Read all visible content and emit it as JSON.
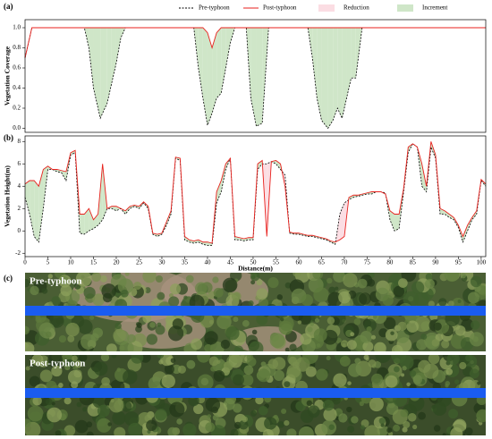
{
  "chart_data": [
    {
      "type": "line",
      "panel_label": "(a)",
      "y_label": "Vegetation Coverage",
      "x": [
        0,
        1.5,
        13,
        14,
        15,
        16.5,
        18,
        19,
        20,
        21,
        22,
        37,
        38,
        39,
        40,
        41,
        42,
        43,
        44,
        45,
        46,
        48.5,
        49.5,
        50.7,
        52,
        53.4,
        62,
        63,
        64,
        65,
        66.4,
        67.5,
        68.5,
        69.5,
        70.5,
        71.5,
        72.5,
        73.9,
        101
      ],
      "series": [
        {
          "name": "Pre-typhoon",
          "color": "#000000",
          "style": "dashed",
          "values": [
            0.7,
            1,
            1,
            0.8,
            0.4,
            0.1,
            0.25,
            0.45,
            0.65,
            0.9,
            1,
            1,
            0.6,
            0.3,
            0.03,
            0.15,
            0.3,
            0.35,
            0.6,
            0.85,
            1,
            1,
            0.3,
            0.02,
            0.05,
            1,
            1,
            0.7,
            0.3,
            0.08,
            0.0,
            0.08,
            0.2,
            0.1,
            0.3,
            0.5,
            0.5,
            1,
            1
          ]
        },
        {
          "name": "Post-typhoon",
          "color": "#e8211d",
          "style": "solid",
          "values": [
            0.7,
            1,
            1,
            1,
            1,
            1,
            1,
            1,
            1,
            1,
            1,
            1,
            1,
            1,
            0.95,
            0.8,
            0.95,
            1,
            1,
            1,
            1,
            1,
            1,
            1,
            1,
            1,
            1,
            1,
            1,
            1,
            1,
            1,
            1,
            1,
            1,
            1,
            1,
            1,
            1
          ]
        }
      ],
      "fills": [
        {
          "name": "Reduction",
          "color": "#fbdde3"
        },
        {
          "name": "Increment",
          "color": "#cfe6c8"
        }
      ],
      "xlim": [
        0,
        101
      ],
      "ylim": [
        -0.04,
        1.08
      ],
      "yticks": [
        {
          "value": 0,
          "label": "0.0"
        },
        {
          "value": 0.2,
          "label": "0.2"
        },
        {
          "value": 0.4,
          "label": "0.4"
        },
        {
          "value": 0.6,
          "label": "0.6"
        },
        {
          "value": 0.8,
          "label": "0.8"
        },
        {
          "value": 1,
          "label": "1.0"
        }
      ],
      "legend": "top-right"
    },
    {
      "type": "line",
      "panel_label": "(b)",
      "y_label": "Vegetation Height(m)",
      "x_label": "Distance(m)",
      "x": [
        0,
        1,
        2,
        3,
        4,
        5,
        6,
        7,
        8,
        9,
        10,
        11,
        12,
        13,
        14,
        15,
        16,
        17,
        18,
        19,
        20,
        21,
        22,
        23,
        24,
        25,
        26,
        27,
        28,
        29,
        30,
        31,
        32,
        33,
        34,
        35,
        36,
        37,
        38,
        39,
        40,
        41,
        42,
        43,
        44,
        45,
        46,
        47,
        48,
        49,
        50,
        51,
        52,
        53,
        54,
        55,
        56,
        57,
        58,
        59,
        60,
        61,
        62,
        63,
        64,
        65,
        66,
        67,
        68,
        69,
        70,
        71,
        72,
        73,
        74,
        75,
        76,
        77,
        78,
        79,
        80,
        81,
        82,
        83,
        84,
        85,
        86,
        87,
        88,
        89,
        90,
        91,
        92,
        93,
        94,
        95,
        96,
        97,
        98,
        99,
        100,
        101
      ],
      "series": [
        {
          "color": "#000000",
          "style": "dashed",
          "values": [
            3.0,
            1.5,
            -0.5,
            -1.0,
            2.0,
            5.5,
            5.5,
            5.3,
            5.2,
            4.5,
            6.8,
            7.0,
            -0.2,
            -0.3,
            0.0,
            0.2,
            0.5,
            1.0,
            2.0,
            2.0,
            1.8,
            2.0,
            1.5,
            2.0,
            2.2,
            2.0,
            2.5,
            2.0,
            -0.3,
            -0.5,
            -0.3,
            0.5,
            1.5,
            6.5,
            6.3,
            -0.8,
            -1.0,
            -1.1,
            -1.0,
            -1.2,
            -1.3,
            -1.3,
            2.5,
            3.5,
            5.5,
            6.5,
            -0.8,
            -0.8,
            -0.9,
            -0.8,
            -0.8,
            5.5,
            6.0,
            6.0,
            6.2,
            6.0,
            5.5,
            5.0,
            -0.2,
            -0.3,
            -0.3,
            -0.4,
            -0.5,
            -0.5,
            -0.6,
            -0.7,
            -0.8,
            -1.0,
            -1.2,
            1.5,
            2.5,
            2.8,
            3.0,
            3.1,
            3.2,
            3.3,
            3.3,
            3.5,
            3.5,
            3.4,
            1.0,
            0.0,
            0.2,
            3.5,
            7.0,
            7.8,
            7.5,
            4.0,
            3.5,
            7.5,
            6.5,
            1.5,
            1.5,
            1.2,
            1.0,
            0.3,
            -1.0,
            0.0,
            1.0,
            1.5,
            4.5,
            4.0
          ]
        },
        {
          "color": "#e8211d",
          "style": "solid",
          "values": [
            4.2,
            4.5,
            4.5,
            4.0,
            5.5,
            5.8,
            5.5,
            5.5,
            5.4,
            5.3,
            7.0,
            7.2,
            1.5,
            1.5,
            2.0,
            1.0,
            1.5,
            6.0,
            2.0,
            2.2,
            2.2,
            2.0,
            1.8,
            2.2,
            2.3,
            2.2,
            2.6,
            2.2,
            -0.2,
            -0.3,
            -0.2,
            0.8,
            1.8,
            6.6,
            6.5,
            -0.5,
            -0.8,
            -0.9,
            -0.8,
            -1.0,
            -1.0,
            -1.1,
            3.5,
            4.5,
            6.0,
            6.5,
            -0.5,
            -0.6,
            -0.7,
            -0.6,
            -0.6,
            6.0,
            6.3,
            -0.5,
            6.2,
            6.3,
            6.0,
            4.0,
            -0.1,
            -0.2,
            -0.2,
            -0.3,
            -0.4,
            -0.4,
            -0.5,
            -0.6,
            -0.7,
            -0.9,
            -1.0,
            -0.8,
            -0.5,
            3.0,
            3.2,
            3.2,
            3.3,
            3.4,
            3.5,
            3.5,
            3.5,
            3.3,
            1.8,
            1.5,
            1.5,
            3.8,
            7.5,
            7.8,
            7.5,
            6.0,
            4.0,
            8.0,
            6.8,
            2.0,
            1.8,
            1.5,
            1.2,
            0.5,
            -0.5,
            0.5,
            1.2,
            1.8,
            4.6,
            4.2
          ]
        }
      ],
      "xlim": [
        0,
        101
      ],
      "ylim": [
        -2.3,
        8.5
      ],
      "xticks": [
        0,
        5,
        10,
        15,
        20,
        25,
        30,
        35,
        40,
        45,
        50,
        55,
        60,
        65,
        70,
        75,
        80,
        85,
        90,
        95,
        100
      ],
      "yticks": [
        -2,
        0,
        2,
        4,
        6,
        8
      ]
    }
  ],
  "photo_panel": {
    "label": "(c)",
    "images": [
      {
        "label": "Pre-typhoon"
      },
      {
        "label": "Post-typhoon"
      }
    ]
  }
}
